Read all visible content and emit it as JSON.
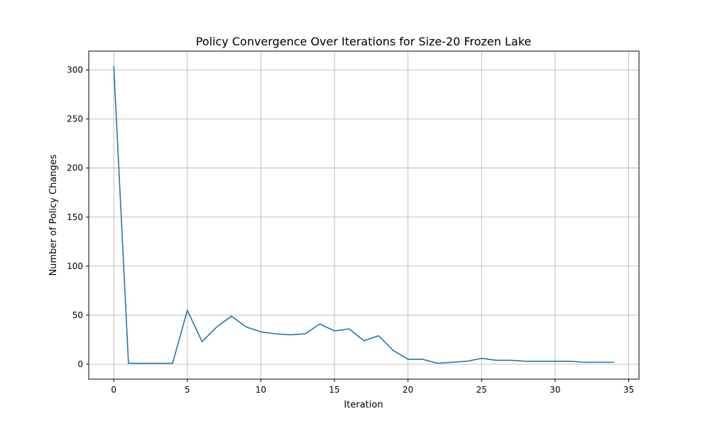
{
  "chart_data": {
    "type": "line",
    "title": "Policy Convergence Over Iterations for Size-20 Frozen Lake",
    "xlabel": "Iteration",
    "ylabel": "Number of Policy Changes",
    "xlim": [
      -1.7,
      35.7
    ],
    "ylim": [
      -15.2,
      319.2
    ],
    "xticks": [
      0,
      5,
      10,
      15,
      20,
      25,
      30,
      35
    ],
    "yticks": [
      0,
      50,
      100,
      150,
      200,
      250,
      300
    ],
    "grid": true,
    "series": [
      {
        "color": "#1f77b4",
        "x": [
          0,
          1,
          2,
          3,
          4,
          5,
          6,
          7,
          8,
          9,
          10,
          11,
          12,
          13,
          14,
          15,
          16,
          17,
          18,
          19,
          20,
          21,
          22,
          23,
          24,
          25,
          26,
          27,
          28,
          29,
          30,
          31,
          32,
          33,
          34
        ],
        "values": [
          304,
          1,
          1,
          1,
          1,
          55,
          23,
          38,
          49,
          38,
          33,
          31,
          30,
          31,
          41,
          34,
          36,
          24,
          29,
          14,
          5,
          5,
          1,
          2,
          3,
          6,
          4,
          4,
          3,
          3,
          3,
          3,
          2,
          2,
          2
        ]
      }
    ]
  }
}
